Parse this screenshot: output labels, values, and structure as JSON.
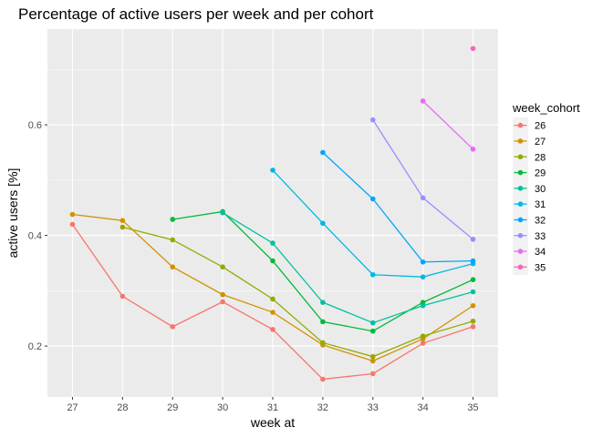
{
  "chart_data": {
    "type": "line",
    "title": "Percentage of active users per week and per cohort",
    "xlabel": "week at",
    "ylabel": "active users [%]",
    "x_ticks": [
      27,
      28,
      29,
      30,
      31,
      32,
      33,
      34,
      35
    ],
    "y_ticks": [
      0.2,
      0.4,
      0.6
    ],
    "y_tick_labels": [
      "0.2",
      "0.4",
      "0.6"
    ],
    "xlim": [
      26.5,
      35.5
    ],
    "ylim": [
      0.108,
      0.773
    ],
    "grid": true,
    "legend": {
      "title": "week_cohort",
      "placement": "right"
    },
    "series": [
      {
        "name": "26",
        "color": "#F8766D",
        "x": [
          27,
          28,
          29,
          30,
          31,
          32,
          33,
          34,
          35
        ],
        "y": [
          0.42,
          0.29,
          0.235,
          0.28,
          0.23,
          0.14,
          0.15,
          0.205,
          0.235
        ]
      },
      {
        "name": "27",
        "color": "#D39200",
        "x": [
          27,
          28,
          29,
          30,
          31,
          32,
          33,
          34,
          35
        ],
        "y": [
          0.438,
          0.427,
          0.343,
          0.293,
          0.261,
          0.202,
          0.173,
          0.213,
          0.273
        ]
      },
      {
        "name": "28",
        "color": "#93AA00",
        "x": [
          28,
          29,
          30,
          31,
          32,
          33,
          34,
          35
        ],
        "y": [
          0.415,
          0.392,
          0.343,
          0.285,
          0.206,
          0.181,
          0.218,
          0.245
        ]
      },
      {
        "name": "29",
        "color": "#00BA38",
        "x": [
          29,
          30,
          31,
          32,
          33,
          34,
          35
        ],
        "y": [
          0.429,
          0.443,
          0.354,
          0.244,
          0.227,
          0.279,
          0.32
        ]
      },
      {
        "name": "30",
        "color": "#00C19F",
        "x": [
          30,
          31,
          32,
          33,
          34,
          35
        ],
        "y": [
          0.441,
          0.386,
          0.279,
          0.242,
          0.273,
          0.298
        ]
      },
      {
        "name": "31",
        "color": "#00B9E3",
        "x": [
          31,
          32,
          33,
          34,
          35
        ],
        "y": [
          0.518,
          0.422,
          0.329,
          0.325,
          0.349
        ]
      },
      {
        "name": "32",
        "color": "#00A5FF",
        "x": [
          32,
          33,
          34,
          35
        ],
        "y": [
          0.55,
          0.466,
          0.352,
          0.354
        ]
      },
      {
        "name": "33",
        "color": "#9590FF",
        "x": [
          33,
          34,
          35
        ],
        "y": [
          0.609,
          0.468,
          0.393
        ]
      },
      {
        "name": "34",
        "color": "#E76BF3",
        "x": [
          34,
          35
        ],
        "y": [
          0.643,
          0.556
        ]
      },
      {
        "name": "35",
        "color": "#FF62BC",
        "x": [
          35
        ],
        "y": [
          0.738
        ]
      }
    ]
  }
}
